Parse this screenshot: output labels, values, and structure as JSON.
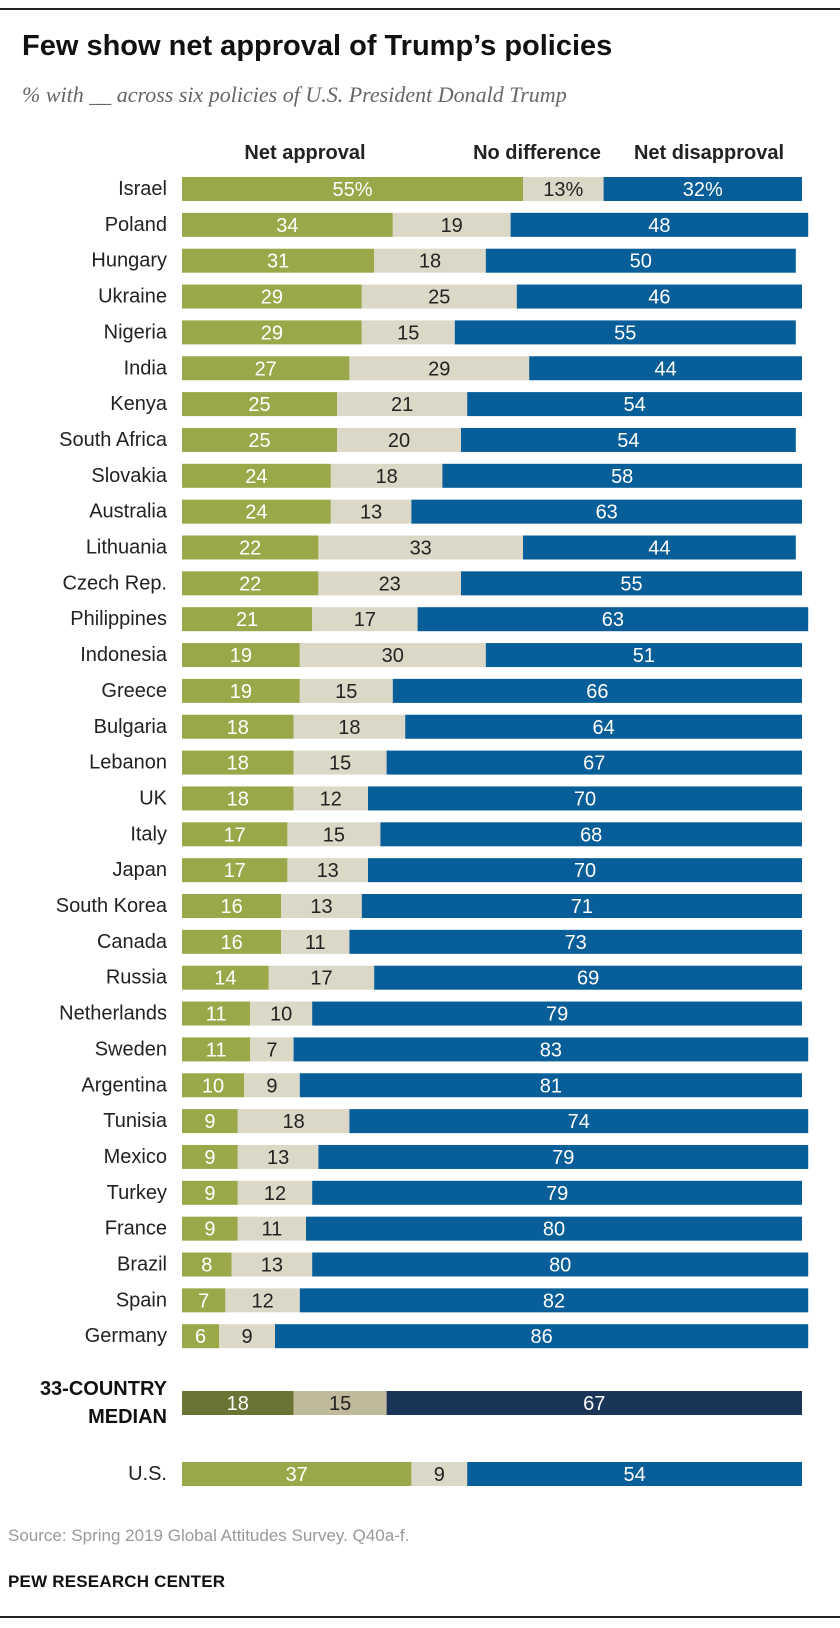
{
  "title": "Few show net approval of Trump’s policies",
  "subtitle": "% with __ across six policies of U.S. President Donald Trump",
  "source": "Source: Spring 2019 Global Attitudes Survey. Q40a-f.",
  "brand": "PEW RESEARCH CENTER",
  "colors": {
    "approval": "#9aa849",
    "no_difference": "#dcd8c8",
    "disapproval": "#075e99",
    "median_approval": "#6b7335",
    "median_no_difference": "#c0b99c",
    "median_disapproval": "#1a3557",
    "label_light": "#ffffff",
    "label_dark": "#222222"
  },
  "chart_data": {
    "type": "bar",
    "orientation": "horizontal",
    "stacked": true,
    "title": "Few show net approval of Trump’s policies",
    "subtitle": "% with __ across six policies of U.S. President Donald Trump",
    "legend": [
      "Net approval",
      "No difference",
      "Net disapproval"
    ],
    "xlim": [
      0,
      100
    ],
    "categories": [
      "Israel",
      "Poland",
      "Hungary",
      "Ukraine",
      "Nigeria",
      "India",
      "Kenya",
      "South Africa",
      "Slovakia",
      "Australia",
      "Lithuania",
      "Czech Rep.",
      "Philippines",
      "Indonesia",
      "Greece",
      "Bulgaria",
      "Lebanon",
      "UK",
      "Italy",
      "Japan",
      "South Korea",
      "Canada",
      "Russia",
      "Netherlands",
      "Sweden",
      "Argentina",
      "Tunisia",
      "Mexico",
      "Turkey",
      "France",
      "Brazil",
      "Spain",
      "Germany"
    ],
    "series": [
      {
        "name": "Net approval",
        "values": [
          55,
          34,
          31,
          29,
          29,
          27,
          25,
          25,
          24,
          24,
          22,
          22,
          21,
          19,
          19,
          18,
          18,
          18,
          17,
          17,
          16,
          16,
          14,
          11,
          11,
          10,
          9,
          9,
          9,
          9,
          8,
          7,
          6
        ]
      },
      {
        "name": "No difference",
        "values": [
          13,
          19,
          18,
          25,
          15,
          29,
          21,
          20,
          18,
          13,
          33,
          23,
          17,
          30,
          15,
          18,
          15,
          12,
          15,
          13,
          13,
          11,
          17,
          10,
          7,
          9,
          18,
          13,
          12,
          11,
          13,
          12,
          9
        ]
      },
      {
        "name": "Net disapproval",
        "values": [
          32,
          48,
          50,
          46,
          55,
          44,
          54,
          54,
          58,
          63,
          44,
          55,
          63,
          51,
          66,
          64,
          67,
          70,
          68,
          70,
          71,
          73,
          69,
          79,
          83,
          81,
          74,
          79,
          79,
          80,
          80,
          82,
          86
        ]
      }
    ],
    "percent_suffix_row": "Israel",
    "median": {
      "label_lines": [
        "33-COUNTRY",
        "MEDIAN"
      ],
      "values": [
        18,
        15,
        67
      ]
    },
    "us": {
      "label": "U.S.",
      "values": [
        37,
        9,
        54
      ]
    }
  }
}
